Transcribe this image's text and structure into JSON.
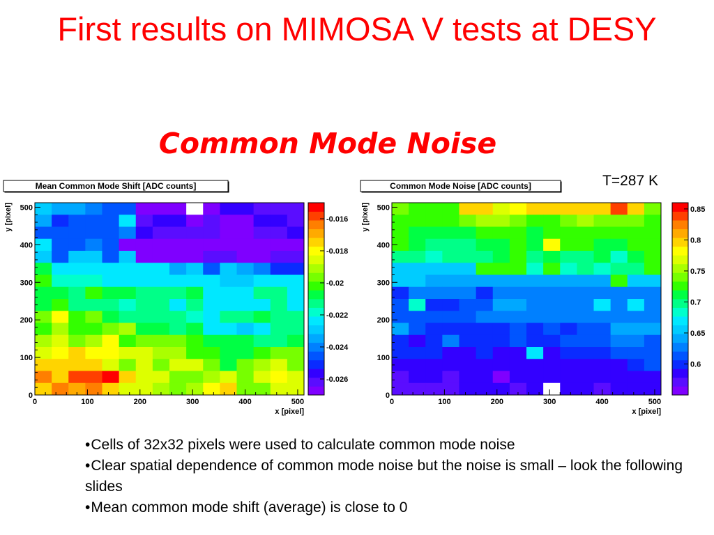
{
  "slide": {
    "title": "First results on MIMOSA V tests at DESY",
    "subtitle": "Common Mode Noise",
    "temperature": "T=287 K",
    "bullets": [
      "Cells of 32x32 pixels were used to calculate common mode noise",
      "Clear spatial dependence of common mode noise but the noise is small – look the following slides",
      "Mean common mode shift (average) is close to 0"
    ]
  },
  "colors": {
    "title": "#ff0000",
    "empty_cell": "#ffffff",
    "palette": [
      "#7f00ff",
      "#5a0dff",
      "#3300ff",
      "#0a2bff",
      "#0055ff",
      "#0080ff",
      "#00a8ff",
      "#00ccff",
      "#00e8ff",
      "#00ffcc",
      "#00ff88",
      "#00ff44",
      "#33ff00",
      "#77ff00",
      "#aaff00",
      "#ddff00",
      "#ffff00",
      "#ffd400",
      "#ffaa00",
      "#ff7f00",
      "#ff4000",
      "#ff0000"
    ]
  },
  "chart_data": [
    {
      "type": "heatmap",
      "title": "Mean Common Mode Shift [ADC counts]",
      "xlabel": "x [pixel]",
      "ylabel": "y [pixel]",
      "xlim": [
        0,
        512
      ],
      "ylim": [
        0,
        512
      ],
      "x_ticks": [
        "0",
        "100",
        "200",
        "300",
        "400",
        "500"
      ],
      "y_ticks": [
        "0",
        "100",
        "200",
        "300",
        "400",
        "500"
      ],
      "cell_size": 32,
      "zlim": [
        -0.027,
        -0.015
      ],
      "z_tick_labels": [
        "-0.016",
        "-0.018",
        "-0.02",
        "-0.022",
        "-0.024",
        "-0.026"
      ],
      "z_tick_values": [
        -0.016,
        -0.018,
        -0.02,
        -0.022,
        -0.024,
        -0.026
      ],
      "rows_top_to_bottom": [
        [
          -0.023,
          -0.0235,
          -0.0235,
          -0.024,
          -0.0245,
          -0.0245,
          -0.0265,
          -0.0265,
          -0.027,
          null,
          -0.027,
          -0.0255,
          -0.0255,
          -0.026,
          -0.026,
          -0.026
        ],
        [
          -0.0235,
          -0.025,
          -0.0245,
          -0.0245,
          -0.0245,
          -0.0225,
          -0.026,
          -0.0255,
          -0.0255,
          -0.0265,
          -0.026,
          -0.0265,
          -0.027,
          -0.0255,
          -0.0255,
          -0.026
        ],
        [
          -0.0245,
          -0.0245,
          -0.0245,
          -0.0245,
          -0.0245,
          -0.024,
          -0.0255,
          -0.026,
          -0.026,
          -0.026,
          -0.026,
          -0.0265,
          -0.0265,
          -0.026,
          -0.026,
          -0.0255
        ],
        [
          -0.0225,
          -0.0245,
          -0.0245,
          -0.024,
          -0.0245,
          -0.0265,
          -0.0265,
          -0.0265,
          -0.0265,
          -0.0265,
          -0.0265,
          -0.0265,
          -0.027,
          -0.0265,
          -0.0265,
          -0.0265
        ],
        [
          -0.023,
          -0.0245,
          -0.023,
          -0.023,
          -0.0245,
          -0.023,
          -0.0265,
          -0.0265,
          -0.0265,
          -0.0265,
          -0.026,
          -0.026,
          -0.0265,
          -0.0265,
          -0.026,
          -0.026
        ],
        [
          -0.0205,
          -0.0225,
          -0.0225,
          -0.0225,
          -0.0225,
          -0.0225,
          -0.0225,
          -0.0225,
          -0.0235,
          -0.023,
          -0.0245,
          -0.023,
          -0.0235,
          -0.024,
          -0.025,
          -0.025
        ],
        [
          -0.02,
          -0.022,
          -0.022,
          -0.022,
          -0.0225,
          -0.0225,
          -0.0225,
          -0.0225,
          -0.0225,
          -0.0225,
          -0.0225,
          -0.023,
          -0.023,
          -0.0225,
          -0.0225,
          -0.0225
        ],
        [
          -0.0205,
          -0.0205,
          -0.021,
          -0.02,
          -0.0205,
          -0.0205,
          -0.0215,
          -0.0215,
          -0.0215,
          -0.0205,
          -0.0225,
          -0.0225,
          -0.0225,
          -0.0215,
          -0.0215,
          -0.0225
        ],
        [
          -0.0205,
          -0.02,
          -0.0215,
          -0.021,
          -0.021,
          -0.022,
          -0.0215,
          -0.0215,
          -0.0225,
          -0.0215,
          -0.0225,
          -0.0225,
          -0.0225,
          -0.0225,
          -0.0215,
          -0.0225
        ],
        [
          -0.0195,
          -0.018,
          -0.02,
          -0.0195,
          -0.0205,
          -0.021,
          -0.0215,
          -0.0215,
          -0.0215,
          -0.022,
          -0.0225,
          -0.0215,
          -0.0215,
          -0.0205,
          -0.021,
          -0.0215
        ],
        [
          -0.02,
          -0.019,
          -0.02,
          -0.02,
          -0.0195,
          -0.019,
          -0.0205,
          -0.0205,
          -0.0215,
          -0.0205,
          -0.0225,
          -0.0225,
          -0.023,
          -0.0225,
          -0.0215,
          -0.0215
        ],
        [
          -0.019,
          -0.0185,
          -0.0195,
          -0.019,
          -0.018,
          -0.02,
          -0.0195,
          -0.0195,
          -0.0195,
          -0.02,
          -0.0205,
          -0.0205,
          -0.0205,
          -0.0215,
          -0.021,
          -0.0205
        ],
        [
          -0.0185,
          -0.018,
          -0.0175,
          -0.018,
          -0.018,
          -0.0185,
          -0.0185,
          -0.019,
          -0.019,
          -0.02,
          -0.02,
          -0.0205,
          -0.0205,
          -0.02,
          -0.0195,
          -0.0195
        ],
        [
          -0.0175,
          -0.0175,
          -0.0175,
          -0.0175,
          -0.0185,
          -0.0195,
          -0.0185,
          -0.0195,
          -0.0185,
          -0.0185,
          -0.0195,
          -0.0205,
          -0.0195,
          -0.019,
          -0.0185,
          -0.0195
        ],
        [
          -0.0165,
          -0.0175,
          -0.016,
          -0.016,
          -0.015,
          -0.0175,
          -0.0185,
          -0.0185,
          -0.0195,
          -0.0195,
          -0.019,
          -0.0185,
          -0.0195,
          -0.0185,
          -0.018,
          -0.0185
        ],
        [
          -0.0175,
          -0.0165,
          -0.017,
          -0.0165,
          -0.0175,
          -0.0185,
          -0.0185,
          -0.019,
          -0.0195,
          -0.019,
          -0.018,
          -0.0175,
          -0.0195,
          -0.0195,
          -0.0185,
          -0.0185
        ]
      ]
    },
    {
      "type": "heatmap",
      "title": "Common Mode Noise [ADC counts]",
      "xlabel": "x [pixel]",
      "ylabel": "y [pixel]",
      "xlim": [
        0,
        512
      ],
      "ylim": [
        0,
        512
      ],
      "x_ticks": [
        "0",
        "100",
        "200",
        "300",
        "400",
        "500"
      ],
      "y_ticks": [
        "0",
        "100",
        "200",
        "300",
        "400",
        "500"
      ],
      "cell_size": 32,
      "zlim": [
        0.55,
        0.86
      ],
      "z_tick_labels": [
        "0.85",
        "0.8",
        "0.75",
        "0.7",
        "0.65",
        "0.6"
      ],
      "z_tick_values": [
        0.85,
        0.8,
        0.75,
        0.7,
        0.65,
        0.6
      ],
      "rows_top_to_bottom": [
        [
          0.74,
          0.73,
          0.73,
          0.73,
          0.79,
          0.79,
          0.77,
          0.78,
          0.79,
          0.79,
          0.8,
          0.79,
          0.79,
          0.84,
          0.79,
          0.74
        ],
        [
          0.73,
          0.72,
          0.73,
          0.72,
          0.74,
          0.76,
          0.75,
          0.74,
          0.73,
          0.73,
          0.74,
          0.75,
          0.74,
          0.74,
          0.74,
          0.73
        ],
        [
          0.72,
          0.71,
          0.71,
          0.71,
          0.71,
          0.72,
          0.72,
          0.73,
          0.71,
          0.73,
          0.72,
          0.72,
          0.73,
          0.72,
          0.72,
          0.73
        ],
        [
          0.72,
          0.71,
          0.7,
          0.7,
          0.7,
          0.71,
          0.71,
          0.72,
          0.71,
          0.78,
          0.72,
          0.72,
          0.71,
          0.71,
          0.72,
          0.73
        ],
        [
          0.7,
          0.7,
          0.69,
          0.7,
          0.7,
          0.7,
          0.71,
          0.72,
          0.7,
          0.71,
          0.7,
          0.7,
          0.71,
          0.69,
          0.71,
          0.72
        ],
        [
          0.65,
          0.65,
          0.65,
          0.65,
          0.66,
          0.72,
          0.72,
          0.72,
          0.69,
          0.72,
          0.69,
          0.7,
          0.69,
          0.7,
          0.7,
          0.73
        ],
        [
          0.65,
          0.65,
          0.64,
          0.64,
          0.64,
          0.64,
          0.64,
          0.64,
          0.64,
          0.64,
          0.64,
          0.64,
          0.64,
          0.72,
          0.66,
          0.66
        ],
        [
          0.6,
          0.63,
          0.63,
          0.63,
          0.63,
          0.6,
          0.63,
          0.63,
          0.63,
          0.63,
          0.63,
          0.63,
          0.63,
          0.63,
          0.63,
          0.63
        ],
        [
          0.62,
          0.68,
          0.6,
          0.6,
          0.62,
          0.62,
          0.64,
          0.64,
          0.63,
          0.63,
          0.63,
          0.63,
          0.67,
          0.63,
          0.67,
          0.63
        ],
        [
          0.62,
          0.61,
          0.61,
          0.61,
          0.62,
          0.63,
          0.63,
          0.63,
          0.63,
          0.63,
          0.63,
          0.63,
          0.63,
          0.63,
          0.63,
          0.63
        ],
        [
          0.64,
          0.61,
          0.6,
          0.6,
          0.6,
          0.6,
          0.6,
          0.61,
          0.6,
          0.61,
          0.6,
          0.61,
          0.62,
          0.64,
          0.64,
          0.64
        ],
        [
          0.6,
          0.59,
          0.6,
          0.63,
          0.6,
          0.6,
          0.6,
          0.61,
          0.6,
          0.6,
          0.61,
          0.61,
          0.61,
          0.63,
          0.63,
          0.62
        ],
        [
          0.6,
          0.6,
          0.6,
          0.58,
          0.59,
          0.6,
          0.59,
          0.58,
          0.67,
          0.59,
          0.6,
          0.6,
          0.6,
          0.61,
          0.62,
          0.62
        ],
        [
          0.58,
          0.58,
          0.59,
          0.59,
          0.59,
          0.59,
          0.58,
          0.58,
          0.59,
          0.59,
          0.58,
          0.59,
          0.58,
          0.59,
          0.6,
          0.61
        ],
        [
          0.57,
          0.58,
          0.58,
          0.57,
          0.58,
          0.59,
          0.56,
          0.58,
          0.59,
          0.58,
          0.58,
          0.58,
          0.59,
          0.59,
          0.59,
          0.58
        ],
        [
          0.57,
          0.57,
          0.57,
          0.57,
          0.58,
          0.59,
          0.58,
          0.57,
          0.58,
          null,
          0.58,
          0.58,
          0.57,
          0.59,
          0.58,
          0.59
        ]
      ]
    }
  ]
}
